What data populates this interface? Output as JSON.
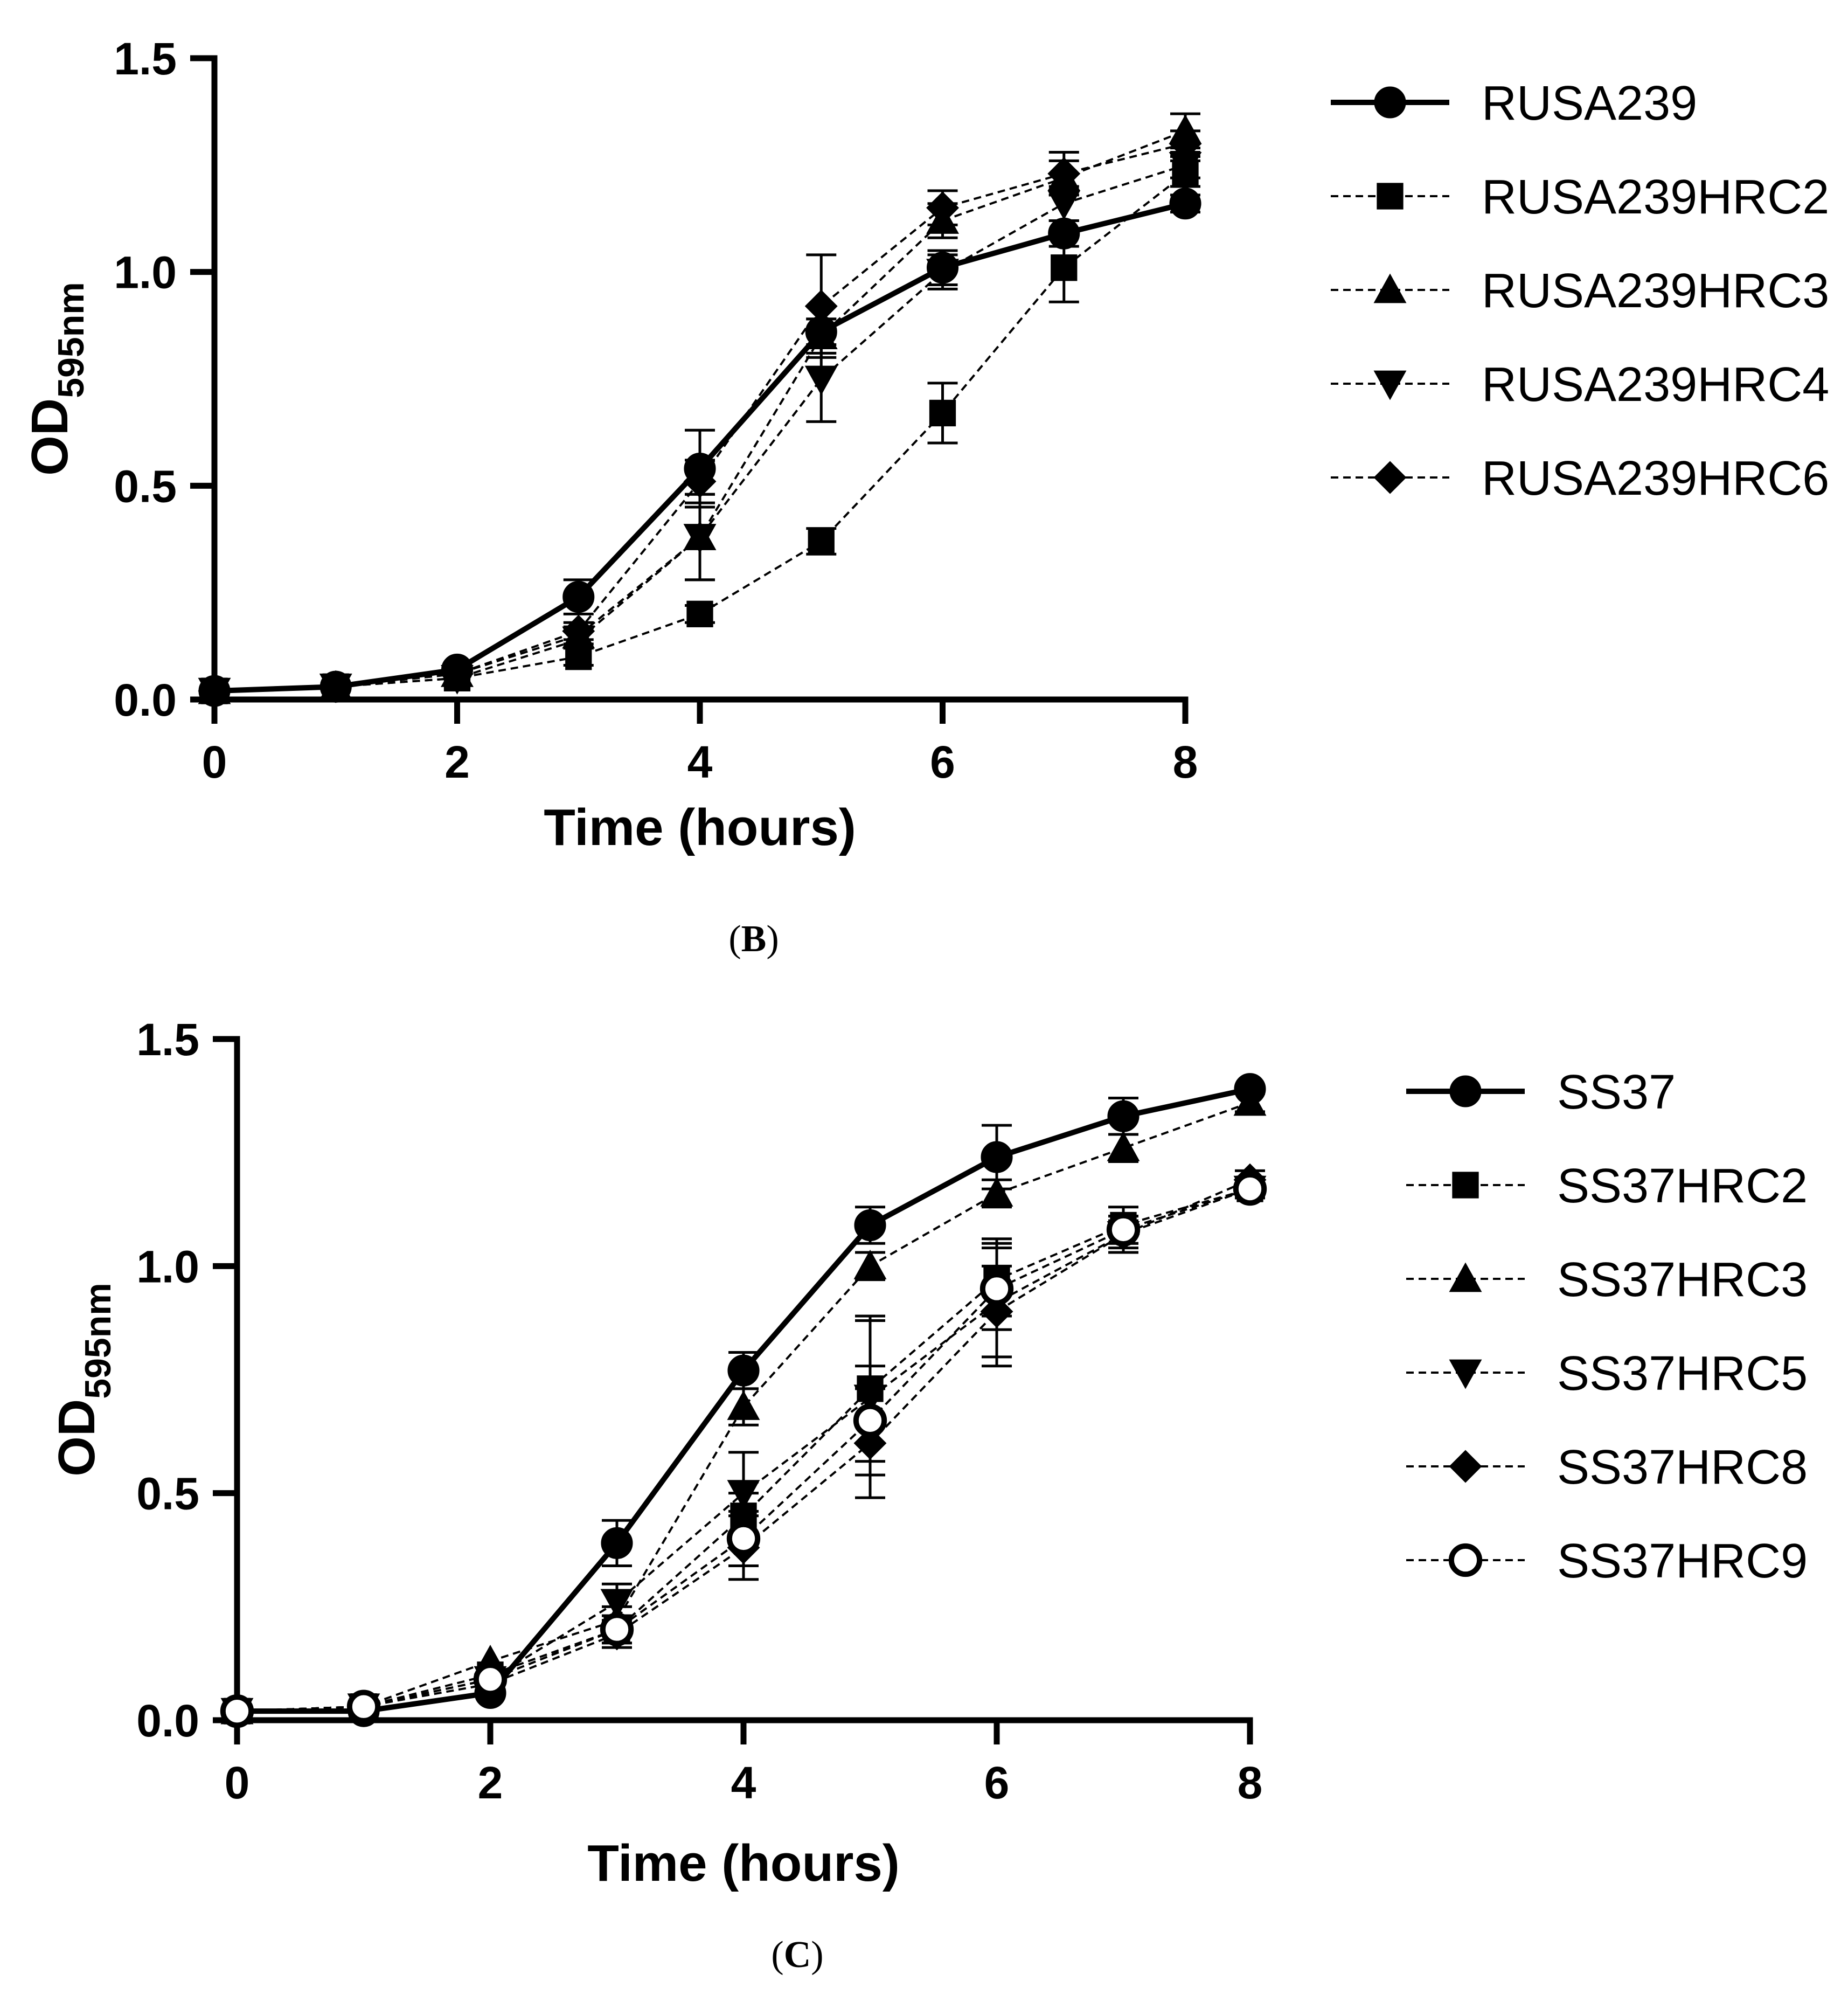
{
  "chart_data": [
    {
      "type": "line",
      "panel_label_bold": "B",
      "xlabel": "Time (hours)",
      "ylabel_main": "OD",
      "ylabel_subscript": "595nm",
      "x": [
        0,
        1,
        2,
        3,
        4,
        5,
        6,
        7,
        8
      ],
      "xlim": [
        0,
        8
      ],
      "ylim": [
        0,
        1.5
      ],
      "x_ticks": [
        "0",
        "2",
        "4",
        "6",
        "8"
      ],
      "y_ticks": [
        "0.0",
        "0.5",
        "1.0",
        "1.5"
      ],
      "grid": false,
      "legend_position": "right",
      "series": [
        {
          "name": "RUSA239",
          "marker": "circle",
          "line": "solid",
          "values": [
            0.02,
            0.03,
            0.07,
            0.24,
            0.54,
            0.86,
            1.01,
            1.09,
            1.16
          ],
          "errors": [
            0.01,
            0.01,
            0.01,
            0.04,
            0.09,
            0.03,
            0.04,
            0.03,
            0.02
          ]
        },
        {
          "name": "RUSA239HRC2",
          "marker": "square",
          "line": "dashed",
          "values": [
            0.02,
            0.03,
            0.05,
            0.1,
            0.2,
            0.37,
            0.67,
            1.01,
            1.23
          ],
          "errors": [
            0.01,
            0.01,
            0.01,
            0.02,
            0.02,
            0.03,
            0.07,
            0.08,
            0.03
          ]
        },
        {
          "name": "RUSA239HRC3",
          "marker": "triangle-up",
          "line": "dashed",
          "values": [
            0.02,
            0.03,
            0.06,
            0.15,
            0.38,
            0.85,
            1.12,
            1.22,
            1.33
          ],
          "errors": [
            0.01,
            0.01,
            0.01,
            0.02,
            0.1,
            0.04,
            0.04,
            0.04,
            0.04
          ]
        },
        {
          "name": "RUSA239HRC4",
          "marker": "triangle-down",
          "line": "dashed",
          "values": [
            0.02,
            0.03,
            0.05,
            0.14,
            0.38,
            0.75,
            1.0,
            1.16,
            1.25
          ],
          "errors": [
            0.01,
            0.01,
            0.01,
            0.02,
            0.1,
            0.1,
            0.04,
            0.04,
            0.03
          ]
        },
        {
          "name": "RUSA239HRC6",
          "marker": "diamond",
          "line": "dashed",
          "values": [
            0.02,
            0.03,
            0.06,
            0.16,
            0.51,
            0.92,
            1.15,
            1.23,
            1.3
          ],
          "errors": [
            0.01,
            0.01,
            0.01,
            0.02,
            0.05,
            0.12,
            0.04,
            0.05,
            0.03
          ]
        }
      ]
    },
    {
      "type": "line",
      "panel_label_bold": "C",
      "xlabel": "Time (hours)",
      "ylabel_main": "OD",
      "ylabel_subscript": "595nm",
      "x": [
        0,
        1,
        2,
        3,
        4,
        5,
        6,
        7,
        8
      ],
      "xlim": [
        0,
        8
      ],
      "ylim": [
        0,
        1.5
      ],
      "x_ticks": [
        "0",
        "2",
        "4",
        "6",
        "8"
      ],
      "y_ticks": [
        "0.0",
        "0.5",
        "1.0",
        "1.5"
      ],
      "grid": false,
      "legend_position": "right",
      "series": [
        {
          "name": "SS37",
          "marker": "circle",
          "line": "solid",
          "values": [
            0.02,
            0.02,
            0.06,
            0.39,
            0.77,
            1.09,
            1.24,
            1.33,
            1.39
          ],
          "errors": [
            0.01,
            0.01,
            0.01,
            0.05,
            0.04,
            0.04,
            0.07,
            0.04,
            0.01
          ]
        },
        {
          "name": "SS37HRC2",
          "marker": "square",
          "line": "dashed",
          "values": [
            0.02,
            0.03,
            0.1,
            0.2,
            0.45,
            0.73,
            0.97,
            1.09,
            1.17
          ],
          "errors": [
            0.01,
            0.01,
            0.01,
            0.03,
            0.05,
            0.16,
            0.08,
            0.04,
            0.02
          ]
        },
        {
          "name": "SS37HRC3",
          "marker": "triangle-up",
          "line": "dashed",
          "values": [
            0.02,
            0.03,
            0.13,
            0.22,
            0.69,
            1.0,
            1.16,
            1.26,
            1.36
          ],
          "errors": [
            0.01,
            0.01,
            0.01,
            0.03,
            0.04,
            0.03,
            0.03,
            0.03,
            0.02
          ]
        },
        {
          "name": "SS37HRC5",
          "marker": "triangle-down",
          "line": "dashed",
          "values": [
            0.02,
            0.03,
            0.09,
            0.26,
            0.5,
            0.71,
            0.92,
            1.07,
            1.17
          ],
          "errors": [
            0.01,
            0.01,
            0.01,
            0.04,
            0.09,
            0.17,
            0.14,
            0.04,
            0.02
          ]
        },
        {
          "name": "SS37HRC8",
          "marker": "diamond",
          "line": "dashed",
          "values": [
            0.02,
            0.03,
            0.08,
            0.19,
            0.38,
            0.61,
            0.9,
            1.07,
            1.19
          ],
          "errors": [
            0.01,
            0.01,
            0.01,
            0.03,
            0.07,
            0.12,
            0.1,
            0.03,
            0.02
          ]
        },
        {
          "name": "SS37HRC9",
          "marker": "circle-open",
          "line": "dashed",
          "values": [
            0.02,
            0.03,
            0.09,
            0.2,
            0.4,
            0.66,
            0.95,
            1.08,
            1.17
          ],
          "errors": [
            0.01,
            0.01,
            0.01,
            0.03,
            0.06,
            0.12,
            0.09,
            0.03,
            0.02
          ]
        }
      ]
    }
  ]
}
